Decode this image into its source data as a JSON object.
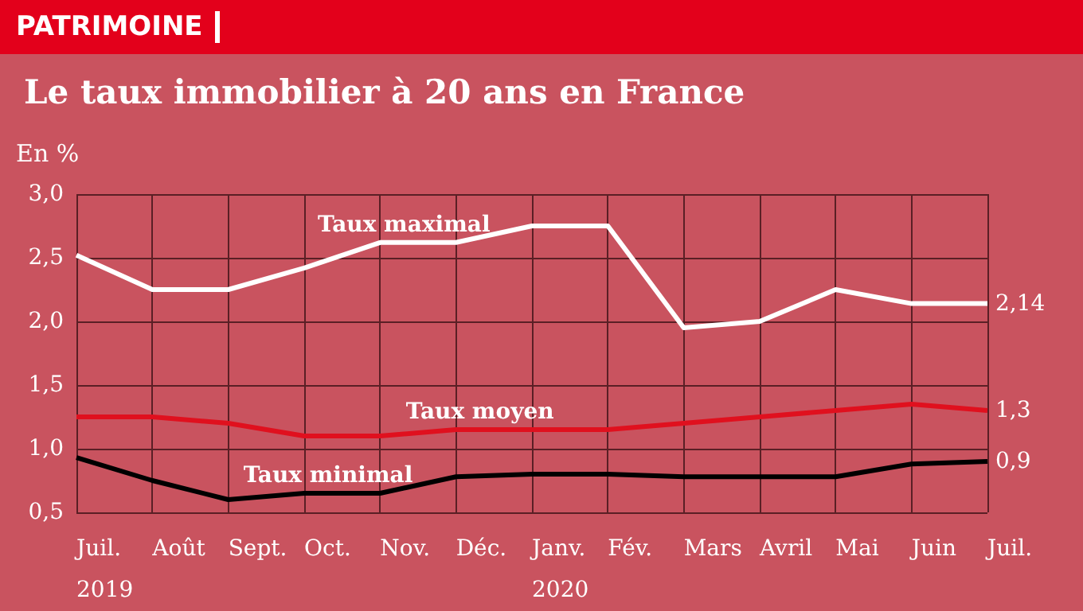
{
  "chart_data": {
    "type": "line",
    "title": "Le taux immobilier à 20 ans en France",
    "ylabel": "En %",
    "annotations": [
      "PATRIMOINE"
    ],
    "categories": [
      "Juil.\n2019",
      "Août",
      "Sept.",
      "Oct.",
      "Nov.",
      "Déc.",
      "Janv.\n2020",
      "Fév.",
      "Mars",
      "Avril",
      "Mai",
      "Juin",
      "Juil."
    ],
    "series": [
      {
        "name": "Taux maximal",
        "color": "#ffffff",
        "values": [
          2.52,
          2.25,
          2.25,
          2.42,
          2.62,
          2.62,
          2.75,
          2.75,
          1.95,
          2.0,
          2.25,
          2.14,
          2.14
        ],
        "value_labels": [
          null,
          null,
          null,
          null,
          null,
          null,
          null,
          null,
          null,
          null,
          null,
          null,
          "2,14"
        ]
      },
      {
        "name": "Taux moyen",
        "color": "#e0101e",
        "values": [
          1.25,
          1.25,
          1.2,
          1.1,
          1.1,
          1.15,
          1.15,
          1.15,
          1.2,
          1.25,
          1.3,
          1.35,
          1.3
        ],
        "value_labels": [
          null,
          null,
          null,
          null,
          null,
          null,
          null,
          null,
          null,
          null,
          null,
          null,
          "1,3"
        ]
      },
      {
        "name": "Taux minimal",
        "color": "#000000",
        "values": [
          0.93,
          0.75,
          0.6,
          0.65,
          0.65,
          0.78,
          0.8,
          0.8,
          0.78,
          0.78,
          0.78,
          0.88,
          0.9
        ],
        "value_labels": [
          null,
          null,
          null,
          null,
          null,
          null,
          null,
          null,
          null,
          null,
          null,
          null,
          "0,9"
        ]
      }
    ],
    "ylim": [
      0.5,
      3.0
    ],
    "yticks": [
      {
        "value": 0.5,
        "label": "0,5"
      },
      {
        "value": 1.0,
        "label": "1,0"
      },
      {
        "value": 1.5,
        "label": "1,5"
      },
      {
        "value": 2.0,
        "label": "2,0"
      },
      {
        "value": 2.5,
        "label": "2,5"
      },
      {
        "value": 3.0,
        "label": "3,0"
      }
    ],
    "grid": true,
    "legend": false,
    "marker": "none",
    "line_style": "solid"
  }
}
